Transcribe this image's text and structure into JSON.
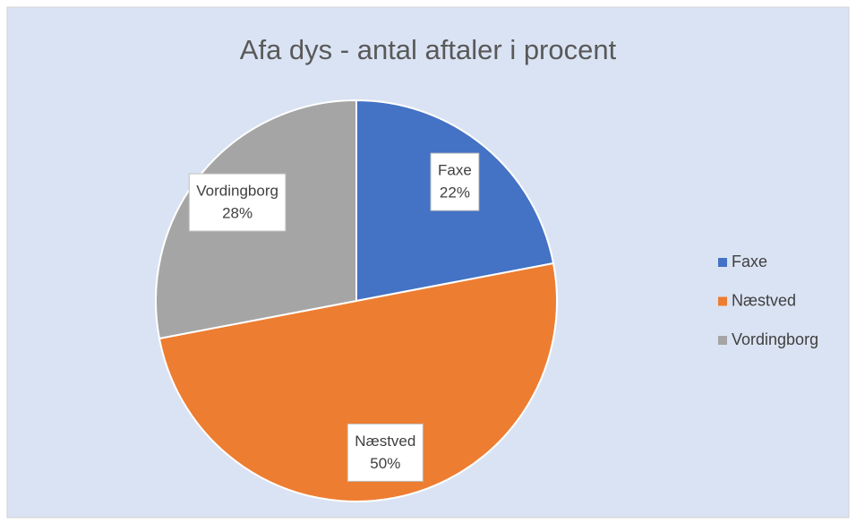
{
  "chart_data": {
    "type": "pie",
    "title": "Afa dys - antal aftaler i procent",
    "categories": [
      "Faxe",
      "Næstved",
      "Vordingborg"
    ],
    "values": [
      22,
      50,
      28
    ],
    "value_labels": [
      "22%",
      "50%",
      "28%"
    ],
    "colors": [
      "#4472c4",
      "#ed7d31",
      "#a5a5a5"
    ],
    "legend": "right"
  }
}
